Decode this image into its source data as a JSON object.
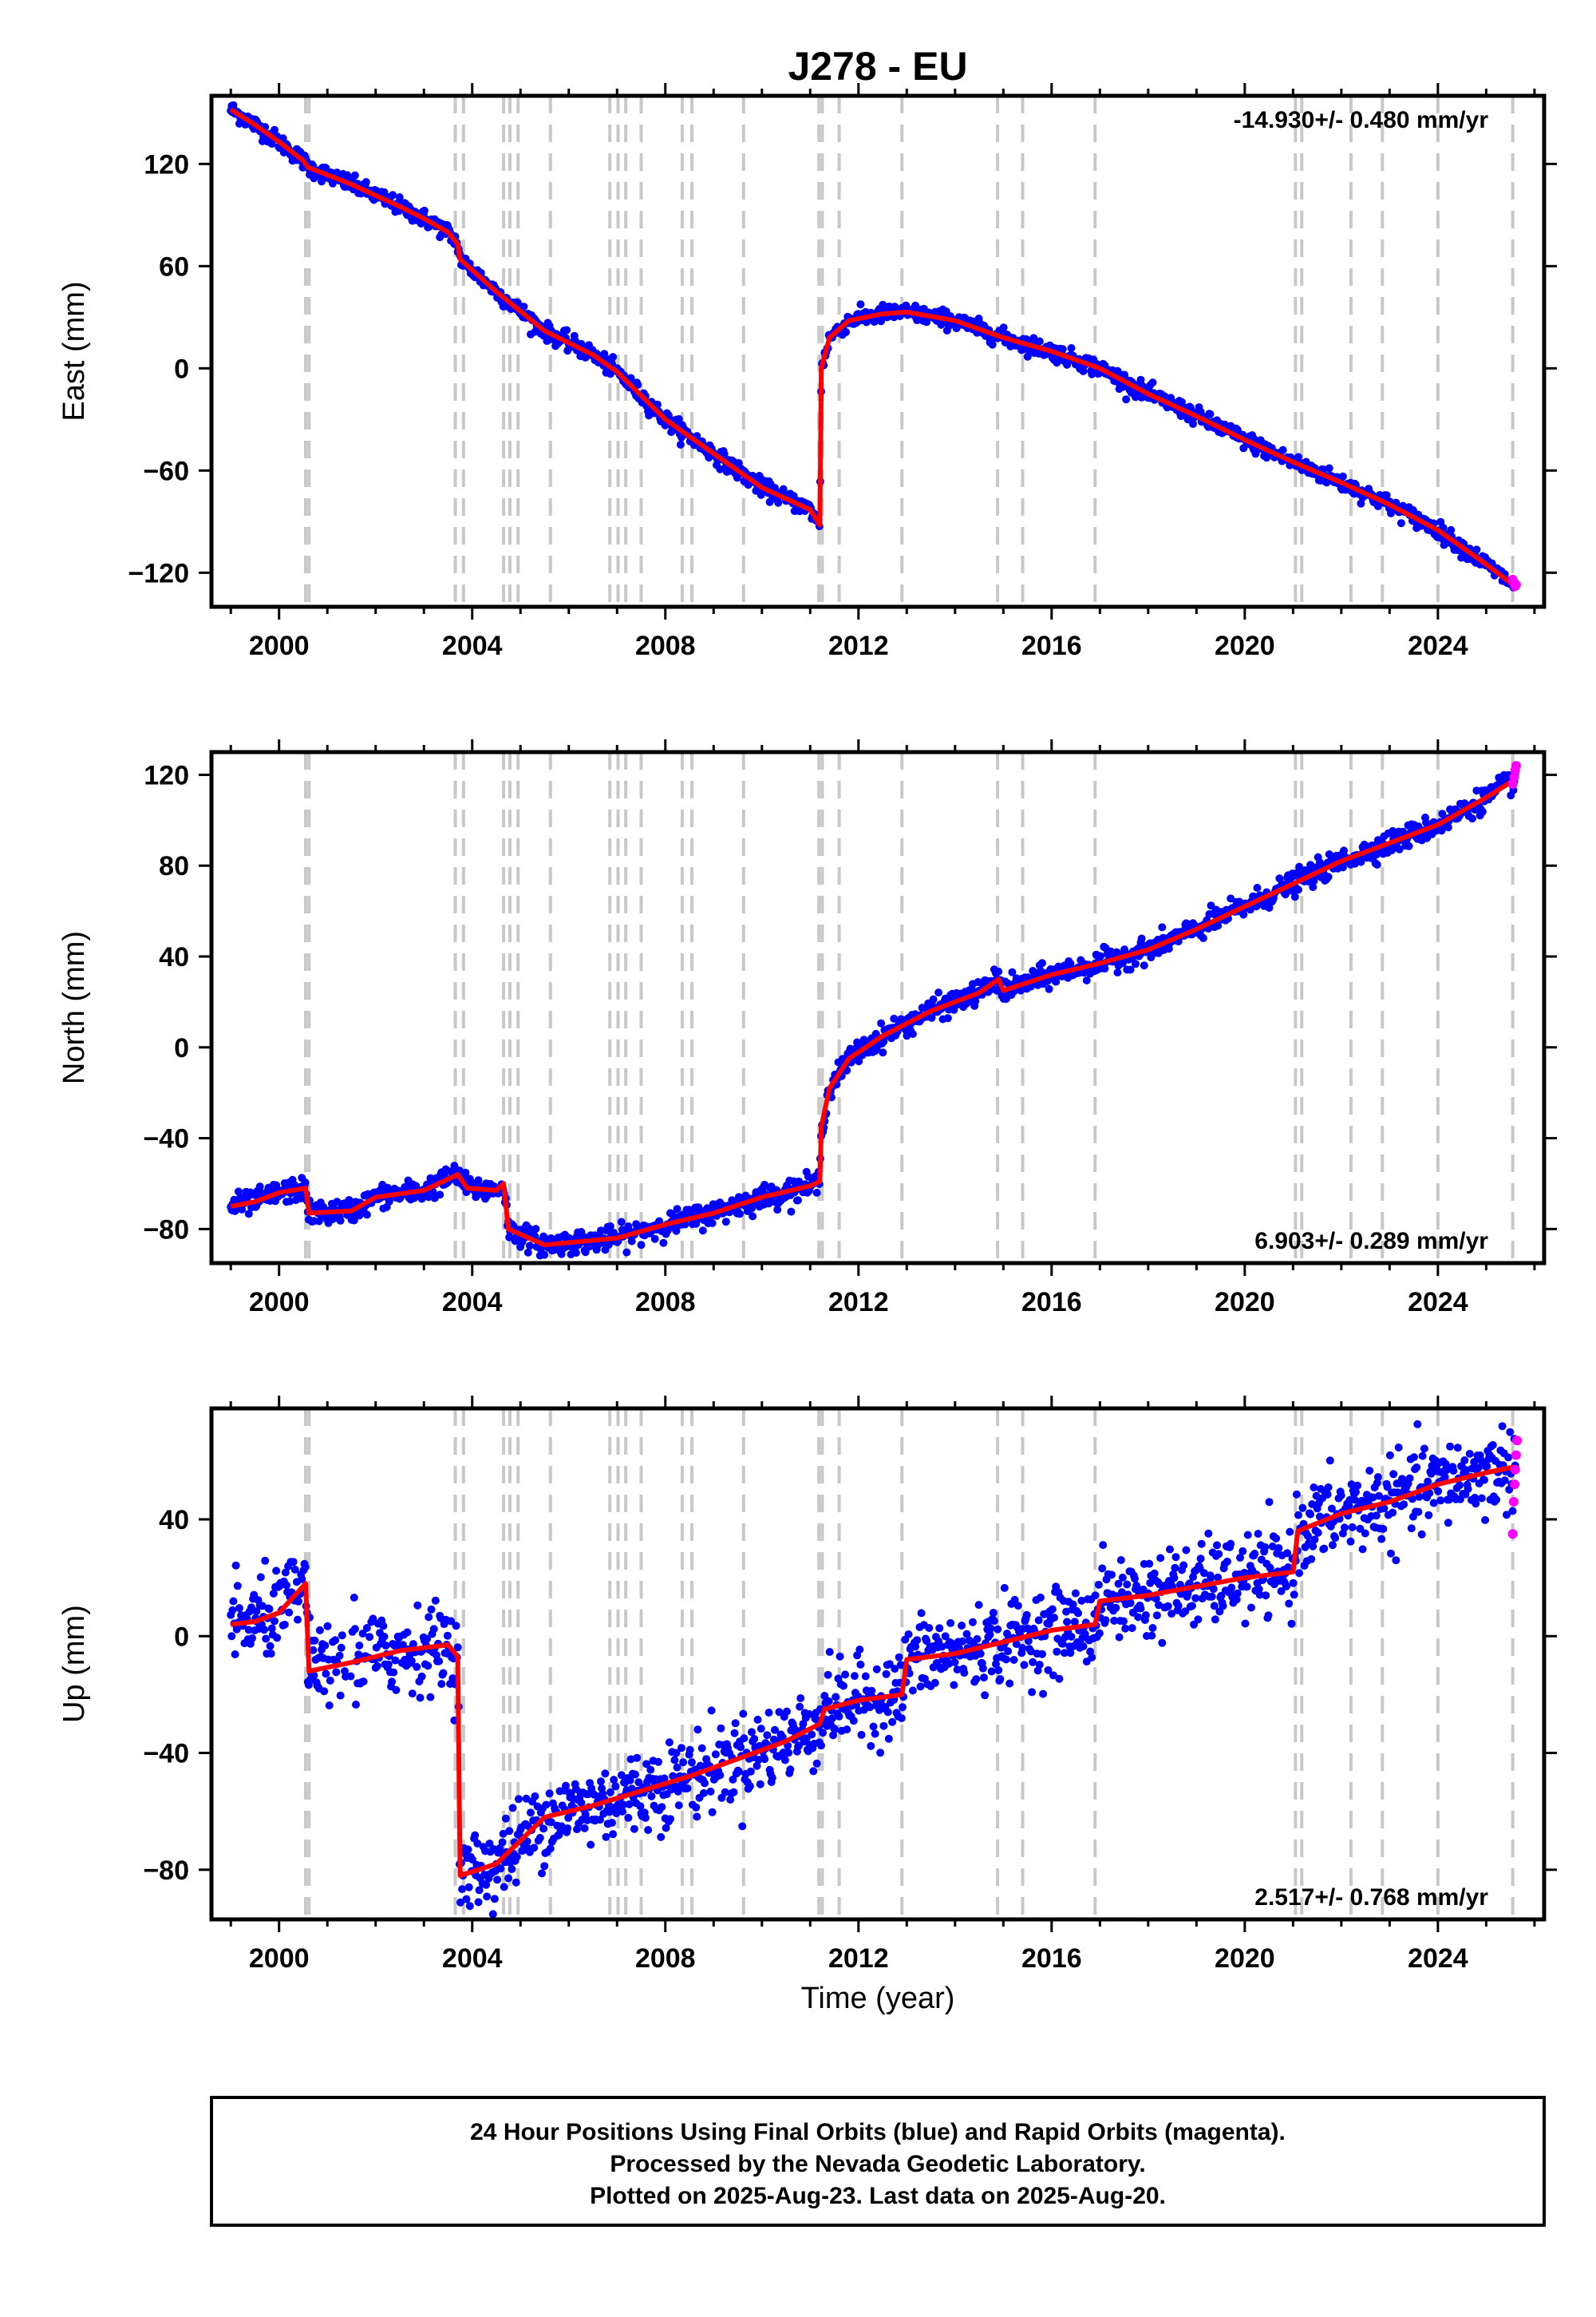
{
  "title": "J278 - EU",
  "xlabel": "Time (year)",
  "footer": [
    "24 Hour Positions Using Final Orbits (blue) and Rapid Orbits (magenta).",
    "Processed by the Nevada Geodetic Laboratory.",
    "Plotted on 2025-Aug-23. Last data on 2025-Aug-20."
  ],
  "colors": {
    "final_orbits": "#0000ff",
    "rapid_orbits": "#ff00ff",
    "model": "#ff0000",
    "event_lines": "#c8c8c8"
  },
  "event_years": [
    2000.55,
    2000.62,
    2003.65,
    2003.82,
    2004.65,
    2004.78,
    2004.95,
    2005.62,
    2006.85,
    2007.02,
    2007.18,
    2007.5,
    2008.35,
    2008.55,
    2009.62,
    2011.18,
    2011.25,
    2011.6,
    2012.9,
    2014.88,
    2015.4,
    2016.9,
    2021.05,
    2021.18,
    2022.2,
    2022.85,
    2024.0,
    2025.55
  ],
  "chart_data": [
    {
      "type": "scatter",
      "component": "east",
      "ylabel": "East (mm)",
      "xlim": [
        1998.6,
        2026.2
      ],
      "ylim": [
        -140,
        160
      ],
      "xticks": [
        2000,
        2004,
        2008,
        2012,
        2016,
        2020,
        2024
      ],
      "yticks": [
        -120,
        -60,
        0,
        60,
        120
      ],
      "rate_label": "-14.930+/- 0.480 mm/yr",
      "rate_position": "top-right",
      "noise_mm": 2.5,
      "x": [
        1999.0,
        1999.5,
        2000.0,
        2000.5,
        2000.6,
        2001.5,
        2002.5,
        2003.0,
        2003.5,
        2003.7,
        2003.75,
        2004.5,
        2005.5,
        2006.5,
        2007.0,
        2008.0,
        2009.0,
        2010.0,
        2011.0,
        2011.2,
        2011.23,
        2011.4,
        2011.8,
        2012.5,
        2013.0,
        2014.0,
        2015.0,
        2016.0,
        2017.0,
        2018.0,
        2019.0,
        2020.0,
        2021.0,
        2022.0,
        2023.0,
        2024.0,
        2025.0,
        2025.6
      ],
      "y": [
        152,
        143,
        133,
        122,
        118,
        108,
        95,
        88,
        80,
        73,
        64,
        45,
        22,
        8,
        -2,
        -30,
        -50,
        -70,
        -83,
        -92,
        0,
        18,
        28,
        32,
        33,
        28,
        18,
        10,
        0,
        -15,
        -28,
        -42,
        -55,
        -67,
        -80,
        -95,
        -115,
        -128
      ],
      "rapid": {
        "x": [
          2025.55,
          2025.58,
          2025.6,
          2025.62
        ],
        "y": [
          -124,
          -126,
          -128,
          -127
        ]
      }
    },
    {
      "type": "scatter",
      "component": "north",
      "ylabel": "North (mm)",
      "xlim": [
        1998.6,
        2026.2
      ],
      "ylim": [
        -95,
        130
      ],
      "xticks": [
        2000,
        2004,
        2008,
        2012,
        2016,
        2020,
        2024
      ],
      "yticks": [
        -80,
        -40,
        0,
        40,
        80,
        120
      ],
      "rate_label": "6.903+/- 0.289 mm/yr",
      "rate_position": "bottom-right",
      "noise_mm": 2.5,
      "x": [
        1999.0,
        1999.5,
        2000.0,
        2000.55,
        2000.62,
        2001.5,
        2002.0,
        2003.0,
        2003.7,
        2003.9,
        2004.5,
        2004.65,
        2004.75,
        2005.5,
        2006.0,
        2007.0,
        2008.0,
        2009.0,
        2010.0,
        2011.0,
        2011.2,
        2011.23,
        2011.4,
        2011.8,
        2012.5,
        2013.5,
        2014.5,
        2014.9,
        2015.0,
        2016.0,
        2017.0,
        2018.0,
        2019.0,
        2020.0,
        2021.0,
        2022.0,
        2023.0,
        2024.0,
        2025.0,
        2025.6
      ],
      "y": [
        -70,
        -68,
        -64,
        -62,
        -73,
        -72,
        -66,
        -63,
        -56,
        -62,
        -63,
        -60,
        -80,
        -87,
        -86,
        -84,
        -78,
        -73,
        -66,
        -61,
        -59,
        -35,
        -18,
        -5,
        5,
        16,
        24,
        30,
        25,
        32,
        37,
        43,
        52,
        62,
        72,
        82,
        90,
        98,
        110,
        118
      ],
      "rapid": {
        "x": [
          2025.55,
          2025.58,
          2025.6,
          2025.62
        ],
        "y": [
          116,
          119,
          122,
          124
        ]
      }
    },
    {
      "type": "scatter",
      "component": "up",
      "ylabel": "Up (mm)",
      "xlim": [
        1998.6,
        2026.2
      ],
      "ylim": [
        -97,
        78
      ],
      "xticks": [
        2000,
        2004,
        2008,
        2012,
        2016,
        2020,
        2024
      ],
      "yticks": [
        -80,
        -40,
        0,
        40
      ],
      "rate_label": "2.517+/- 0.768 mm/yr",
      "rate_position": "bottom-right",
      "noise_mm": 7,
      "x": [
        1999.0,
        1999.5,
        2000.0,
        2000.55,
        2000.62,
        2001.5,
        2002.5,
        2003.5,
        2003.7,
        2003.75,
        2004.5,
        2005.5,
        2006.5,
        2007.5,
        2008.5,
        2009.5,
        2010.5,
        2011.2,
        2011.3,
        2012.0,
        2012.9,
        2013.0,
        2014.0,
        2015.0,
        2016.0,
        2016.9,
        2017.0,
        2018.0,
        2019.0,
        2020.0,
        2021.0,
        2021.1,
        2022.0,
        2023.0,
        2024.0,
        2025.0,
        2025.6
      ],
      "y": [
        4,
        5,
        8,
        18,
        -12,
        -9,
        -5,
        -3,
        -7,
        -82,
        -78,
        -62,
        -58,
        -53,
        -48,
        -42,
        -36,
        -30,
        -25,
        -22,
        -20,
        -8,
        -6,
        -2,
        2,
        4,
        12,
        14,
        17,
        20,
        22,
        36,
        42,
        46,
        52,
        56,
        58
      ],
      "rapid": {
        "x": [
          2025.55,
          2025.57,
          2025.59,
          2025.6,
          2025.62,
          2025.64
        ],
        "y": [
          35,
          46,
          52,
          57,
          62,
          67
        ]
      }
    }
  ]
}
